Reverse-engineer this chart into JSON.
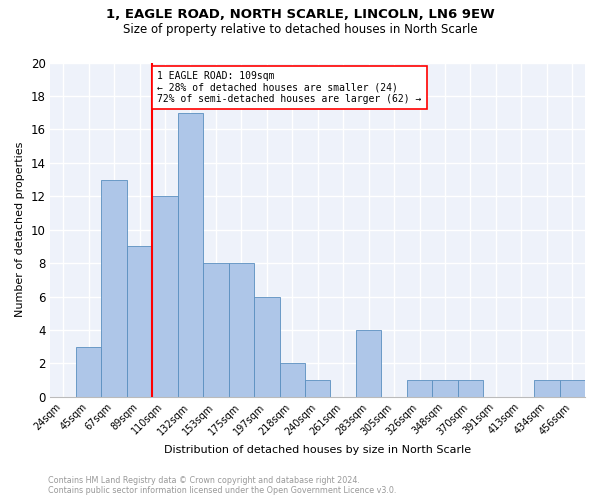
{
  "title1": "1, EAGLE ROAD, NORTH SCARLE, LINCOLN, LN6 9EW",
  "title2": "Size of property relative to detached houses in North Scarle",
  "xlabel": "Distribution of detached houses by size in North Scarle",
  "ylabel": "Number of detached properties",
  "categories": [
    "24sqm",
    "45sqm",
    "67sqm",
    "89sqm",
    "110sqm",
    "132sqm",
    "153sqm",
    "175sqm",
    "197sqm",
    "218sqm",
    "240sqm",
    "261sqm",
    "283sqm",
    "305sqm",
    "326sqm",
    "348sqm",
    "370sqm",
    "391sqm",
    "413sqm",
    "434sqm",
    "456sqm"
  ],
  "values": [
    0,
    3,
    13,
    9,
    12,
    17,
    8,
    8,
    6,
    2,
    1,
    0,
    4,
    0,
    1,
    1,
    1,
    0,
    0,
    1,
    1
  ],
  "bar_color": "#aec6e8",
  "bar_edge_color": "#5a8fc0",
  "annotation_text_line1": "1 EAGLE ROAD: 109sqm",
  "annotation_text_line2": "← 28% of detached houses are smaller (24)",
  "annotation_text_line3": "72% of semi-detached houses are larger (62) →",
  "annotation_box_color": "white",
  "annotation_box_edge_color": "red",
  "vline_color": "red",
  "vline_index": 4,
  "ylim": [
    0,
    20
  ],
  "yticks": [
    0,
    2,
    4,
    6,
    8,
    10,
    12,
    14,
    16,
    18,
    20
  ],
  "footnote1": "Contains HM Land Registry data © Crown copyright and database right 2024.",
  "footnote2": "Contains public sector information licensed under the Open Government Licence v3.0.",
  "bg_color": "#eef2fa",
  "grid_color": "white"
}
